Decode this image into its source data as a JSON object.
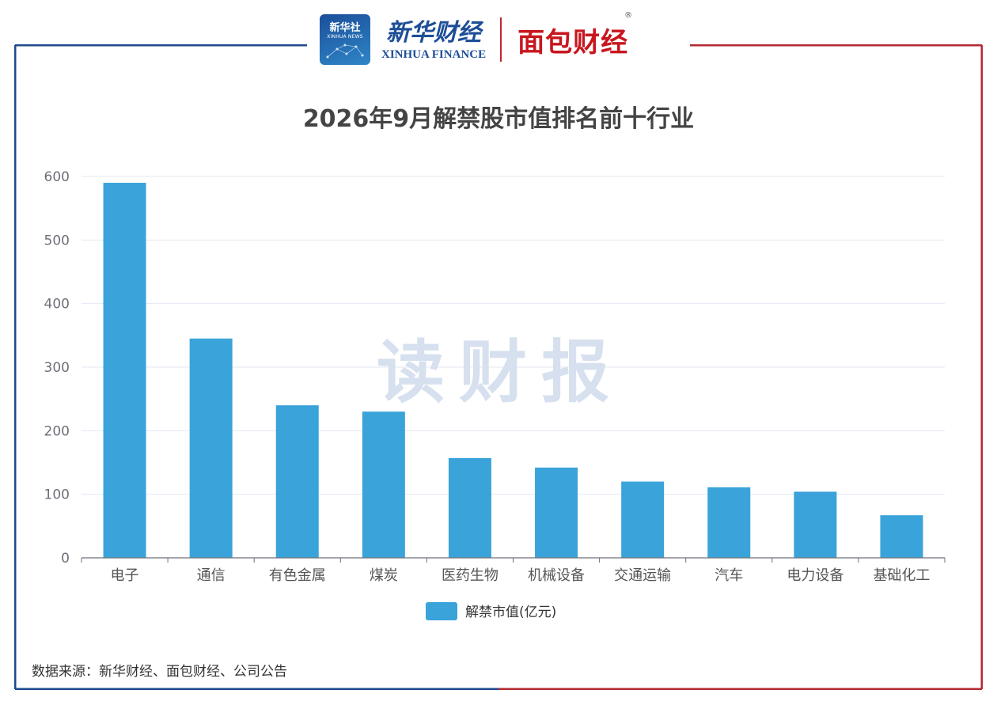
{
  "header": {
    "xinhua_she_cn": "新华社",
    "xinhua_she_en": "XINHUA NEWS",
    "xinhua_finance_cn": "新华财经",
    "xinhua_finance_en": "XINHUA FINANCE",
    "mianbao_cn": "面包财经",
    "mianbao_reg": "®"
  },
  "watermark": "读财报",
  "source": "数据来源：新华财经、面包财经、公司公告",
  "colors": {
    "bar": "#3aa3da",
    "frame_left": "#1f4b8d",
    "frame_right": "#b52a33",
    "grid": "#e4e7f2",
    "title": "#444444",
    "watermark": "#d6e0ee"
  },
  "chart_data": {
    "type": "bar",
    "title": "2026年9月解禁股市值排名前十行业",
    "categories": [
      "电子",
      "通信",
      "有色金属",
      "煤炭",
      "医药生物",
      "机械设备",
      "交通运输",
      "汽车",
      "电力设备",
      "基础化工"
    ],
    "series": [
      {
        "name": "解禁市值(亿元)",
        "values": [
          590,
          345,
          240,
          230,
          157,
          142,
          120,
          111,
          104,
          67
        ]
      }
    ],
    "ylim": [
      0,
      600
    ],
    "yticks": [
      0,
      100,
      200,
      300,
      400,
      500,
      600
    ],
    "grid": true,
    "legend_position": "bottom"
  }
}
